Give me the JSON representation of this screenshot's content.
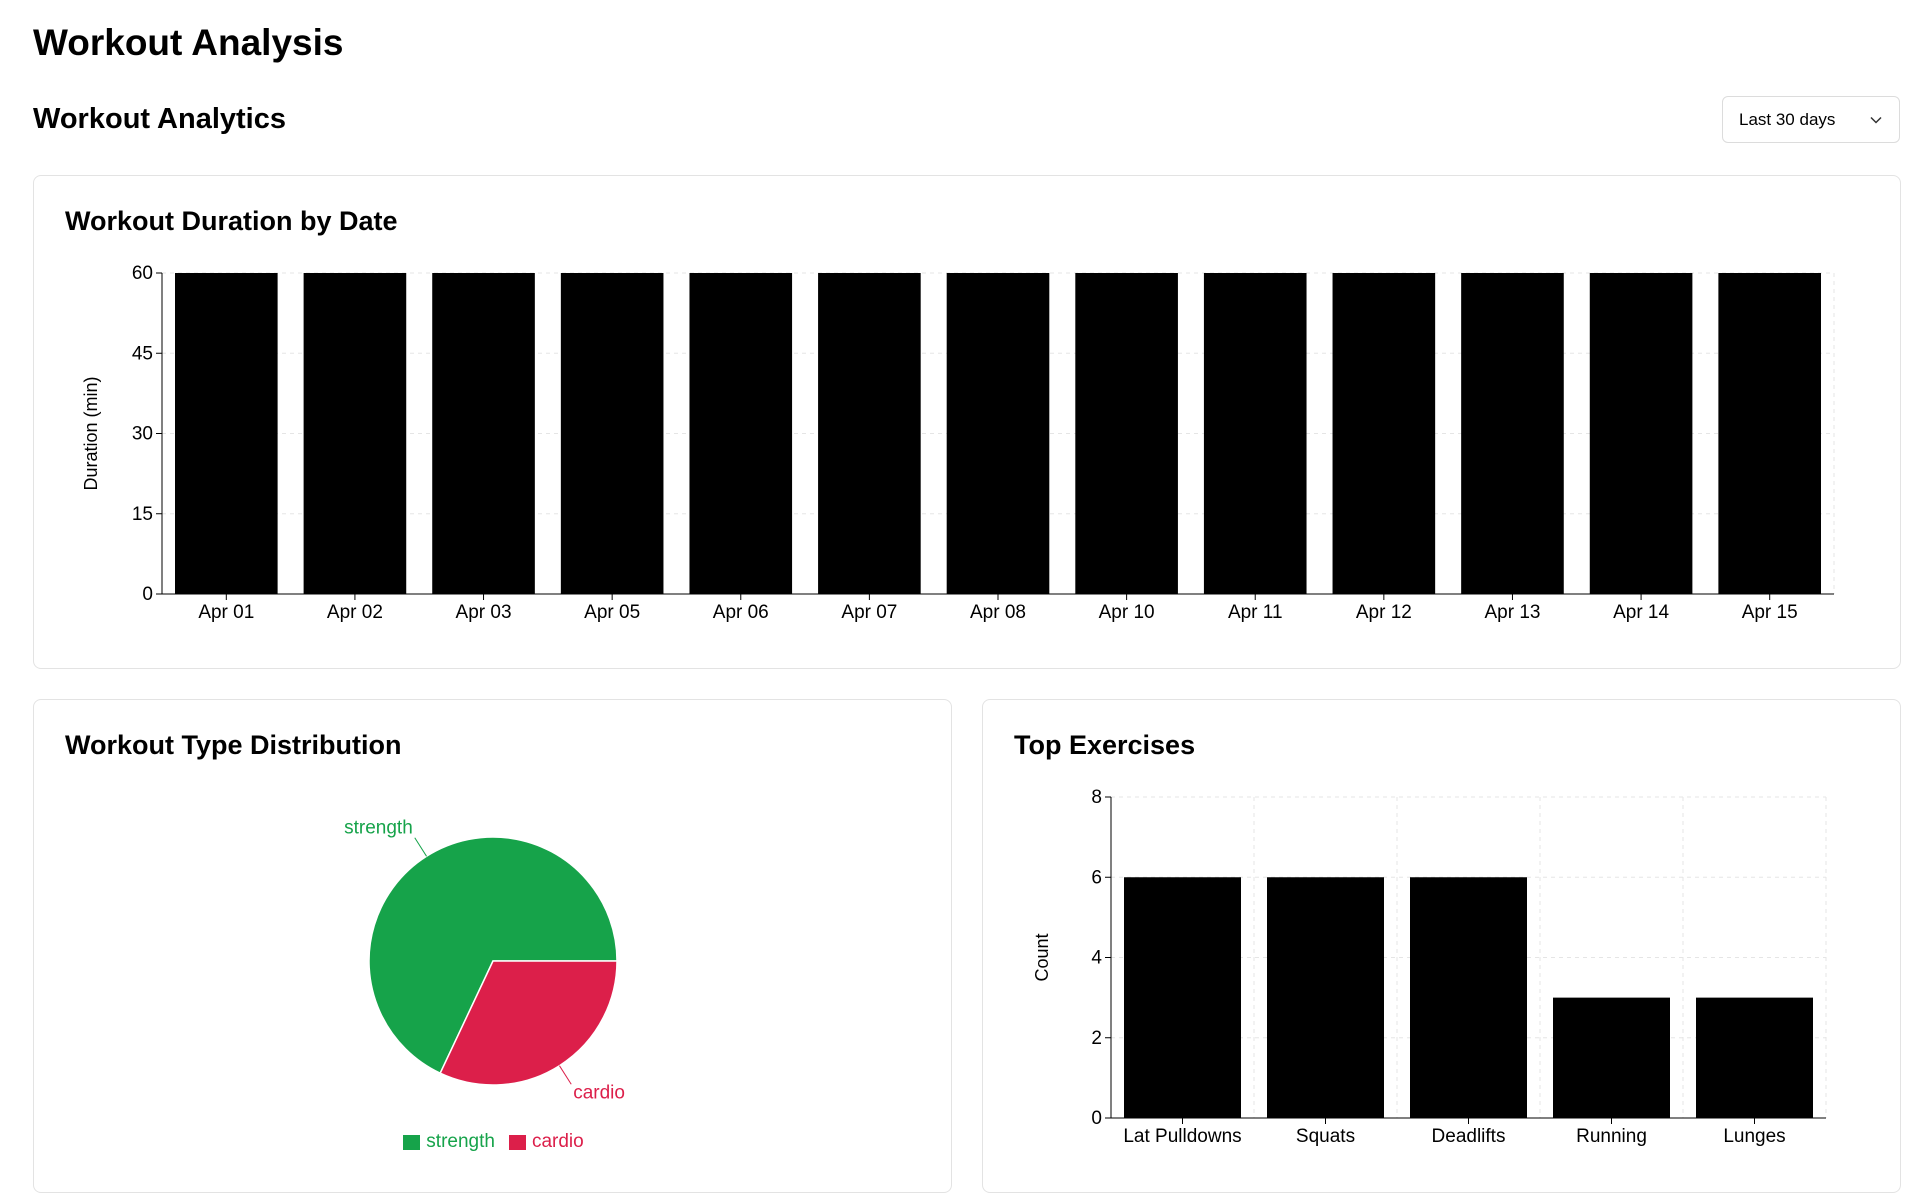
{
  "page": {
    "title": "Workout Analysis"
  },
  "section": {
    "title": "Workout Analytics"
  },
  "range_select": {
    "value": "Last 30 days",
    "icon": "chevron-down-icon"
  },
  "colors": {
    "bar": "#000000",
    "strength": "#16a34a",
    "cardio": "#dc1f4a",
    "grid": "#e5e5e5",
    "border": "#e3e3e3"
  },
  "cards": {
    "duration": {
      "title": "Workout Duration by Date"
    },
    "type": {
      "title": "Workout Type Distribution"
    },
    "top": {
      "title": "Top Exercises"
    }
  },
  "chart_data": [
    {
      "id": "duration",
      "type": "bar",
      "title": "Workout Duration by Date",
      "xlabel": "",
      "ylabel": "Duration (min)",
      "ylim": [
        0,
        60
      ],
      "yticks": [
        0,
        15,
        30,
        45,
        60
      ],
      "grid": true,
      "categories": [
        "Apr 01",
        "Apr 02",
        "Apr 03",
        "Apr 05",
        "Apr 06",
        "Apr 07",
        "Apr 08",
        "Apr 10",
        "Apr 11",
        "Apr 12",
        "Apr 13",
        "Apr 14",
        "Apr 15"
      ],
      "values": [
        60,
        60,
        60,
        60,
        60,
        60,
        60,
        60,
        60,
        60,
        60,
        60,
        60
      ]
    },
    {
      "id": "type",
      "type": "pie",
      "title": "Workout Type Distribution",
      "labels": [
        "strength",
        "cardio"
      ],
      "values": [
        68,
        32
      ],
      "legend": "bottom"
    },
    {
      "id": "top",
      "type": "bar",
      "title": "Top Exercises",
      "xlabel": "",
      "ylabel": "Count",
      "ylim": [
        0,
        8
      ],
      "yticks": [
        0,
        2,
        4,
        6,
        8
      ],
      "grid": true,
      "categories": [
        "Lat Pulldowns",
        "Squats",
        "Deadlifts",
        "Running",
        "Lunges"
      ],
      "values": [
        6,
        6,
        6,
        3,
        3
      ]
    }
  ]
}
